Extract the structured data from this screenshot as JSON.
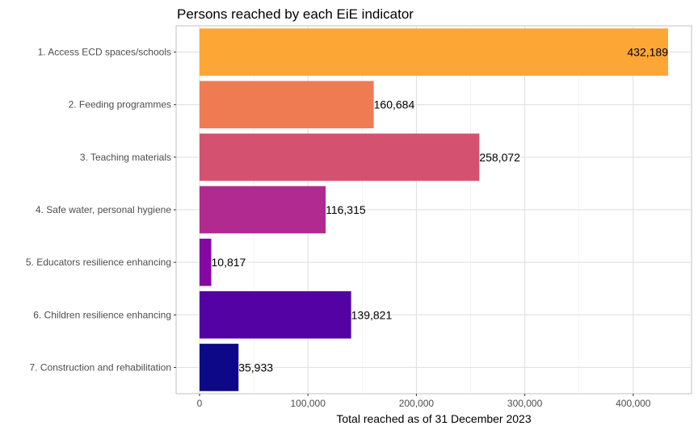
{
  "chart_data": {
    "type": "bar",
    "orientation": "horizontal",
    "title": "Persons reached by each EiE indicator",
    "xlabel": "Total reached as of 31 December 2023",
    "ylabel": "",
    "categories": [
      "1. Access ECD spaces/schools",
      "2. Feeding programmes",
      "3. Teaching materials",
      "4. Safe water, personal hygiene",
      "5. Educators resilience enhancing",
      "6. Children resilience enhancing",
      "7. Construction and rehabilitation"
    ],
    "values": [
      432189,
      160684,
      258072,
      116315,
      10817,
      139821,
      35933
    ],
    "value_labels": [
      "432,189",
      "160,684",
      "258,072",
      "116,315",
      "10,817",
      "139,821",
      "35,933"
    ],
    "colors": [
      "#FCA636",
      "#EF7B53",
      "#D45270",
      "#B12A90",
      "#8507A4",
      "#5402A3",
      "#0D0887"
    ],
    "xticks": [
      0,
      100000,
      200000,
      300000,
      400000
    ],
    "xtick_labels": [
      "0",
      "100,000",
      "200,000",
      "300,000",
      "400,000"
    ],
    "xlim": [
      -21610,
      453799
    ],
    "grid": true,
    "legend": "none"
  }
}
